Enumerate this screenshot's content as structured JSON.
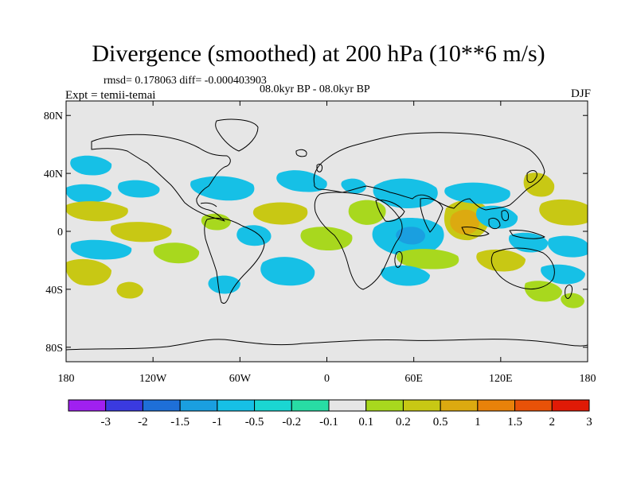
{
  "title": "Divergence (smoothed) at 200 hPa (10**6 m/s)",
  "stats": "rmsd= 0.178063 diff= -0.000403903",
  "experiment": "Expt = temii-temai",
  "period": "08.0kyr BP - 08.0kyr BP",
  "season": "DJF",
  "map": {
    "lat_labels": [
      {
        "label": "80N",
        "lat": 80
      },
      {
        "label": "40N",
        "lat": 40
      },
      {
        "label": "0",
        "lat": 0
      },
      {
        "label": "40S",
        "lat": -40
      },
      {
        "label": "80S",
        "lat": -80
      }
    ],
    "lon_labels": [
      {
        "label": "180",
        "lon": -180
      },
      {
        "label": "120W",
        "lon": -120
      },
      {
        "label": "60W",
        "lon": -60
      },
      {
        "label": "0",
        "lon": 0
      },
      {
        "label": "60E",
        "lon": 60
      },
      {
        "label": "120E",
        "lon": 120
      },
      {
        "label": "180",
        "lon": 180
      }
    ],
    "background_color": "#e6e6e6",
    "coast_color": "#000000"
  },
  "colorbar": {
    "labels": [
      "-3",
      "-2",
      "-1.5",
      "-1",
      "-0.5",
      "-0.2",
      "-0.1",
      "0.1",
      "0.2",
      "0.5",
      "1",
      "1.5",
      "2",
      "3"
    ],
    "colors": [
      "#a020f0",
      "#3a3ae0",
      "#1e6fd8",
      "#1a9fe0",
      "#16c0e6",
      "#1ad6d2",
      "#28dca4",
      "#e6e6e6",
      "#a8d81e",
      "#c8c814",
      "#dcaa10",
      "#e8820a",
      "#e85208",
      "#e01a06"
    ]
  },
  "chart_data": {
    "type": "heatmap",
    "title": "Divergence (smoothed) at 200 hPa (10**6 m/s)",
    "units": "10**6 m/s",
    "domain": {
      "lon": [
        -180,
        180
      ],
      "lat": [
        -90,
        90
      ]
    },
    "levels": [
      -3,
      -2,
      -1.5,
      -1,
      -0.5,
      -0.2,
      -0.1,
      0.1,
      0.2,
      0.5,
      1,
      1.5,
      2,
      3
    ],
    "features": [
      {
        "lon": 85,
        "lat": 5,
        "value": 1.0
      },
      {
        "lon": 60,
        "lat": 0,
        "value": -0.5
      },
      {
        "lon": 62,
        "lat": -5,
        "value": -1.0
      },
      {
        "lon": 30,
        "lat": 10,
        "value": 0.3
      },
      {
        "lon": -160,
        "lat": -25,
        "value": 0.4
      },
      {
        "lon": -40,
        "lat": 15,
        "value": 0.3
      },
      {
        "lon": -20,
        "lat": 25,
        "value": -0.3
      },
      {
        "lon": -100,
        "lat": 20,
        "value": -0.3
      },
      {
        "lon": -140,
        "lat": 10,
        "value": 0.2
      },
      {
        "lon": 150,
        "lat": -15,
        "value": -0.3
      },
      {
        "lon": 150,
        "lat": -30,
        "value": -0.3
      },
      {
        "lon": 150,
        "lat": 25,
        "value": 0.3
      }
    ]
  }
}
